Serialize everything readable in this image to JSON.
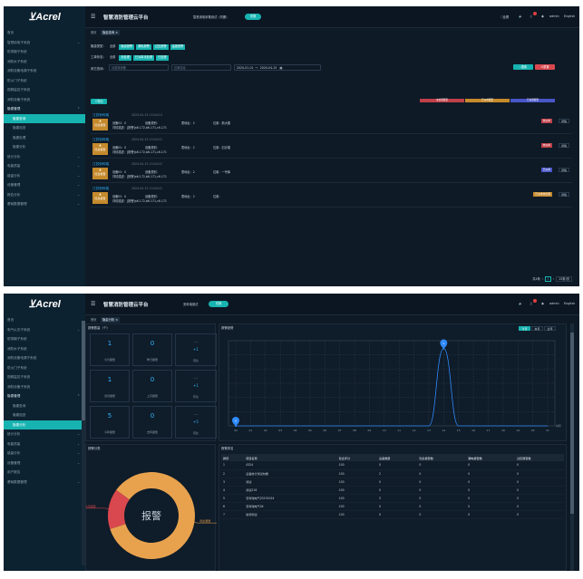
{
  "brand": "Acrel",
  "header": {
    "title": "智慧消防管理云平台",
    "lang": "English",
    "user": "admin",
    "fullscreen": "全屏"
  },
  "p1": {
    "project_select": "智慧用电采集测试（勿删）",
    "switch_label": "切换",
    "tabs": [
      "首页",
      "隐患查询 ×"
    ],
    "sidebar": [
      {
        "label": "首页",
        "cls": "sitem"
      },
      {
        "label": "智慧用电子系统",
        "cls": "sitem",
        "chev": "⌄"
      },
      {
        "label": "防排烟子系统",
        "cls": "sitem"
      },
      {
        "label": "消防水子系统",
        "cls": "sitem"
      },
      {
        "label": "消防设备电源子系统",
        "cls": "sitem"
      },
      {
        "label": "防火门子系统",
        "cls": "sitem"
      },
      {
        "label": "视频监控子系统",
        "cls": "sitem"
      },
      {
        "label": "消防设备子系统",
        "cls": "sitem"
      },
      {
        "label": "隐患管理",
        "cls": "sitem head",
        "chev": "⌃"
      },
      {
        "label": "隐患查询",
        "cls": "sitem sub active"
      },
      {
        "label": "隐患巡查",
        "cls": "sitem sub"
      },
      {
        "label": "隐患处理",
        "cls": "sitem sub"
      },
      {
        "label": "隐患分析",
        "cls": "sitem sub"
      },
      {
        "label": "统计分析",
        "cls": "sitem",
        "chev": "⌄"
      },
      {
        "label": "电能质量",
        "cls": "sitem",
        "chev": "⌄"
      },
      {
        "label": "能量分析",
        "cls": "sitem",
        "chev": "⌄"
      },
      {
        "label": "设备管理",
        "cls": "sitem",
        "chev": "⌄"
      },
      {
        "label": "报告分析",
        "cls": "sitem",
        "chev": "⌄"
      },
      {
        "label": "基础数据管理",
        "cls": "sitem",
        "chev": "⌄"
      }
    ],
    "filters": {
      "row1_label": "隐患类型：",
      "row1_chips": [
        "全部",
        "隐患报警",
        "漏电报警",
        "过压报警",
        "温度报警"
      ],
      "row2_label": "工单状态：",
      "row2_chips": [
        "全部",
        "未处理",
        "已派单未处理",
        "已处理"
      ],
      "row3_label": "其它查询：",
      "device_placeholder": "请选择设备",
      "location_placeholder": "位置信息",
      "date_from": "2020-01-01",
      "date_to": "2020-04-15",
      "search": "搜索",
      "reset": "重置",
      "export": "导出"
    },
    "legend": [
      "未处理报警",
      "已派单报警",
      "已处理报警"
    ],
    "cards": [
      {
        "title": "江苏安科瑞",
        "time": "2020-04-15 15:04:10",
        "icon": "隐患报警",
        "id": "设备ID：0",
        "type": "设备类别：",
        "addr": "表地址：2",
        "loc": "位置：新大楼",
        "desc": "详情描述：[报警]a6.172,b6.171,c6.171",
        "badge": "未派单",
        "bcolor": "#c0404a",
        "detail": "详情"
      },
      {
        "title": "江苏安科瑞",
        "time": "2020-04-15 15:04:22",
        "icon": "隐患报警",
        "id": "设备ID：0",
        "type": "设备类别：",
        "addr": "表地址：2",
        "loc": "位置：旧办楼",
        "desc": "详情描述：[报警]a6.172,b6.171,c6.171",
        "badge": "未派单",
        "bcolor": "#c0404a",
        "detail": "详情"
      },
      {
        "title": "江苏安科瑞",
        "time": "2020-04-15 15:04:22",
        "icon": "隐患报警",
        "id": "设备ID：0",
        "type": "设备类别：",
        "addr": "表地址：2",
        "loc": "位置：一号库",
        "desc": "详情描述：[报警]a6.172,b6.171,c6.171",
        "badge": "已派单",
        "bcolor": "#4a56c8",
        "detail": "详情"
      },
      {
        "title": "江苏安科瑞",
        "time": "2020-04-15 15:04:22",
        "icon": "隐患报警",
        "id": "设备ID：0",
        "type": "设备类别：",
        "addr": "表地址：2",
        "loc": "位置：",
        "desc": "详情描述：[报警]a6.172,b6.171,c6.171",
        "badge": "已派单未处理",
        "bcolor": "#c58a2c",
        "detail": "详情"
      }
    ],
    "pager": {
      "total": "共4条",
      "page": "1",
      "size": "15条/页"
    }
  },
  "p2": {
    "project_select": "安科瑞测试",
    "switch_label": "切换",
    "tabs": [
      "首页",
      "隐患分析 ×"
    ],
    "sidebar": [
      {
        "label": "首页",
        "cls": "sitem"
      },
      {
        "label": "电气火灾子系统",
        "cls": "sitem",
        "chev": "⌄"
      },
      {
        "label": "防排烟子系统",
        "cls": "sitem"
      },
      {
        "label": "消防水子系统",
        "cls": "sitem"
      },
      {
        "label": "消防设备电源子系统",
        "cls": "sitem"
      },
      {
        "label": "防火门子系统",
        "cls": "sitem"
      },
      {
        "label": "视频监控子系统",
        "cls": "sitem"
      },
      {
        "label": "消防设备子系统",
        "cls": "sitem"
      },
      {
        "label": "隐患管理",
        "cls": "sitem head",
        "chev": "⌃"
      },
      {
        "label": "隐患查询",
        "cls": "sitem sub"
      },
      {
        "label": "隐患巡查",
        "cls": "sitem sub"
      },
      {
        "label": "隐患分析",
        "cls": "sitem sub active"
      },
      {
        "label": "统计分析",
        "cls": "sitem",
        "chev": "⌄"
      },
      {
        "label": "电能质量",
        "cls": "sitem",
        "chev": "⌄"
      },
      {
        "label": "能量分析",
        "cls": "sitem",
        "chev": "⌄"
      },
      {
        "label": "设备管理",
        "cls": "sitem",
        "chev": "⌄"
      },
      {
        "label": "用户报告",
        "cls": "sitem"
      },
      {
        "label": "基础数据管理",
        "cls": "sitem",
        "chev": "⌄"
      }
    ],
    "stats_title": "报警数量（个）",
    "stats": [
      {
        "v": "1",
        "l": "今日报警"
      },
      {
        "v": "0",
        "l": "昨日报警"
      },
      {
        "d1": "- -",
        "d2": "+1",
        "l": "同比"
      },
      {
        "v": "1",
        "l": "当月报警"
      },
      {
        "v": "0",
        "l": "上月报警"
      },
      {
        "d1": "- -",
        "d2": "+1",
        "l": "环比"
      },
      {
        "v": "5",
        "l": "今年报警"
      },
      {
        "v": "0",
        "l": "去年报警"
      },
      {
        "d1": "- -",
        "d2": "+5",
        "l": "同比"
      }
    ],
    "trend_title": "报警趋势",
    "toggles": [
      "今日",
      "本月",
      "全年"
    ],
    "class_title": "报警分类",
    "donut": {
      "center": "报警",
      "segments": [
        {
          "name": "隐患报警",
          "value": 85,
          "color": "#e8a24e"
        },
        {
          "name": "过压报警",
          "value": 15,
          "color": "#d9484e"
        }
      ]
    },
    "rank_title": "报警排名",
    "table": {
      "headers": [
        "排序",
        "项目名称",
        "隐患评分",
        "设备数量",
        "隐患报警数",
        "漏电报警数",
        "过压报警数"
      ],
      "rows": [
        [
          "1",
          "4324",
          "100",
          "0",
          "0",
          "0",
          "0"
        ],
        [
          "2",
          "设备统计测试勿删",
          "100",
          "2",
          "0",
          "0",
          "0"
        ],
        [
          "3",
          "测试",
          "100",
          "0",
          "0",
          "0",
          "0"
        ],
        [
          "4",
          "测试216",
          "100",
          "0",
          "0",
          "0",
          "0"
        ],
        [
          "5",
          "安科瑞电气20191024",
          "100",
          "3",
          "0",
          "0",
          "0"
        ],
        [
          "6",
          "安科瑞电气04",
          "100",
          "0",
          "0",
          "0",
          "0"
        ],
        [
          "7",
          "新增测试",
          "100",
          "0",
          "0",
          "0",
          "0"
        ]
      ]
    }
  },
  "chart_data": {
    "type": "line",
    "x": [
      "00",
      "01",
      "02",
      "03",
      "04",
      "05",
      "06",
      "07",
      "08",
      "09",
      "10",
      "11",
      "12",
      "13",
      "14",
      "15",
      "16",
      "17",
      "18",
      "19",
      "20",
      "21"
    ],
    "values": [
      0,
      0,
      0,
      0,
      0,
      0,
      0,
      0,
      0,
      0,
      0,
      0,
      0,
      0,
      1,
      0,
      0,
      0,
      0,
      0,
      0,
      0
    ],
    "peak_label": "1",
    "start_label": "0",
    "xunit": "时间",
    "ylim": [
      0,
      1.1
    ],
    "grid": true
  }
}
